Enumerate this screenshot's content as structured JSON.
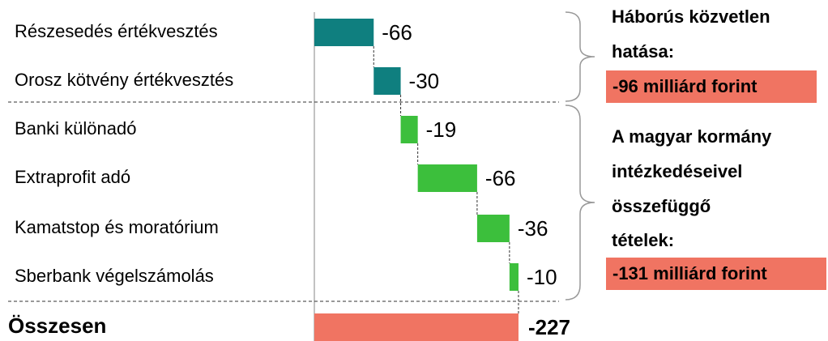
{
  "chart_data": {
    "type": "waterfall",
    "orientation": "horizontal",
    "categories": [
      "Részesedés értékvesztés",
      "Orosz kötvény értékvesztés",
      "Banki különadó",
      "Extraprofit adó",
      "Kamatstop és moratórium",
      "Sberbank végelszámolás"
    ],
    "values": [
      -66,
      -30,
      -19,
      -66,
      -36,
      -10
    ],
    "colors": [
      "#0f7f7f",
      "#0f7f7f",
      "#3cbf3c",
      "#3cbf3c",
      "#3cbf3c",
      "#3cbf3c"
    ],
    "total": {
      "label": "Összesen",
      "value": -227,
      "color": "#f07462"
    },
    "annotations": [
      {
        "lines": [
          "Háborús közvetlen",
          "hatása:"
        ],
        "box": "-96 milliárd forint",
        "box_color": "#f07462"
      },
      {
        "lines": [
          "A magyar kormány",
          "intézkedéseivel",
          "összefüggő",
          "tételek:"
        ],
        "box": "-131 milliárd forint",
        "box_color": "#f07462"
      }
    ]
  }
}
